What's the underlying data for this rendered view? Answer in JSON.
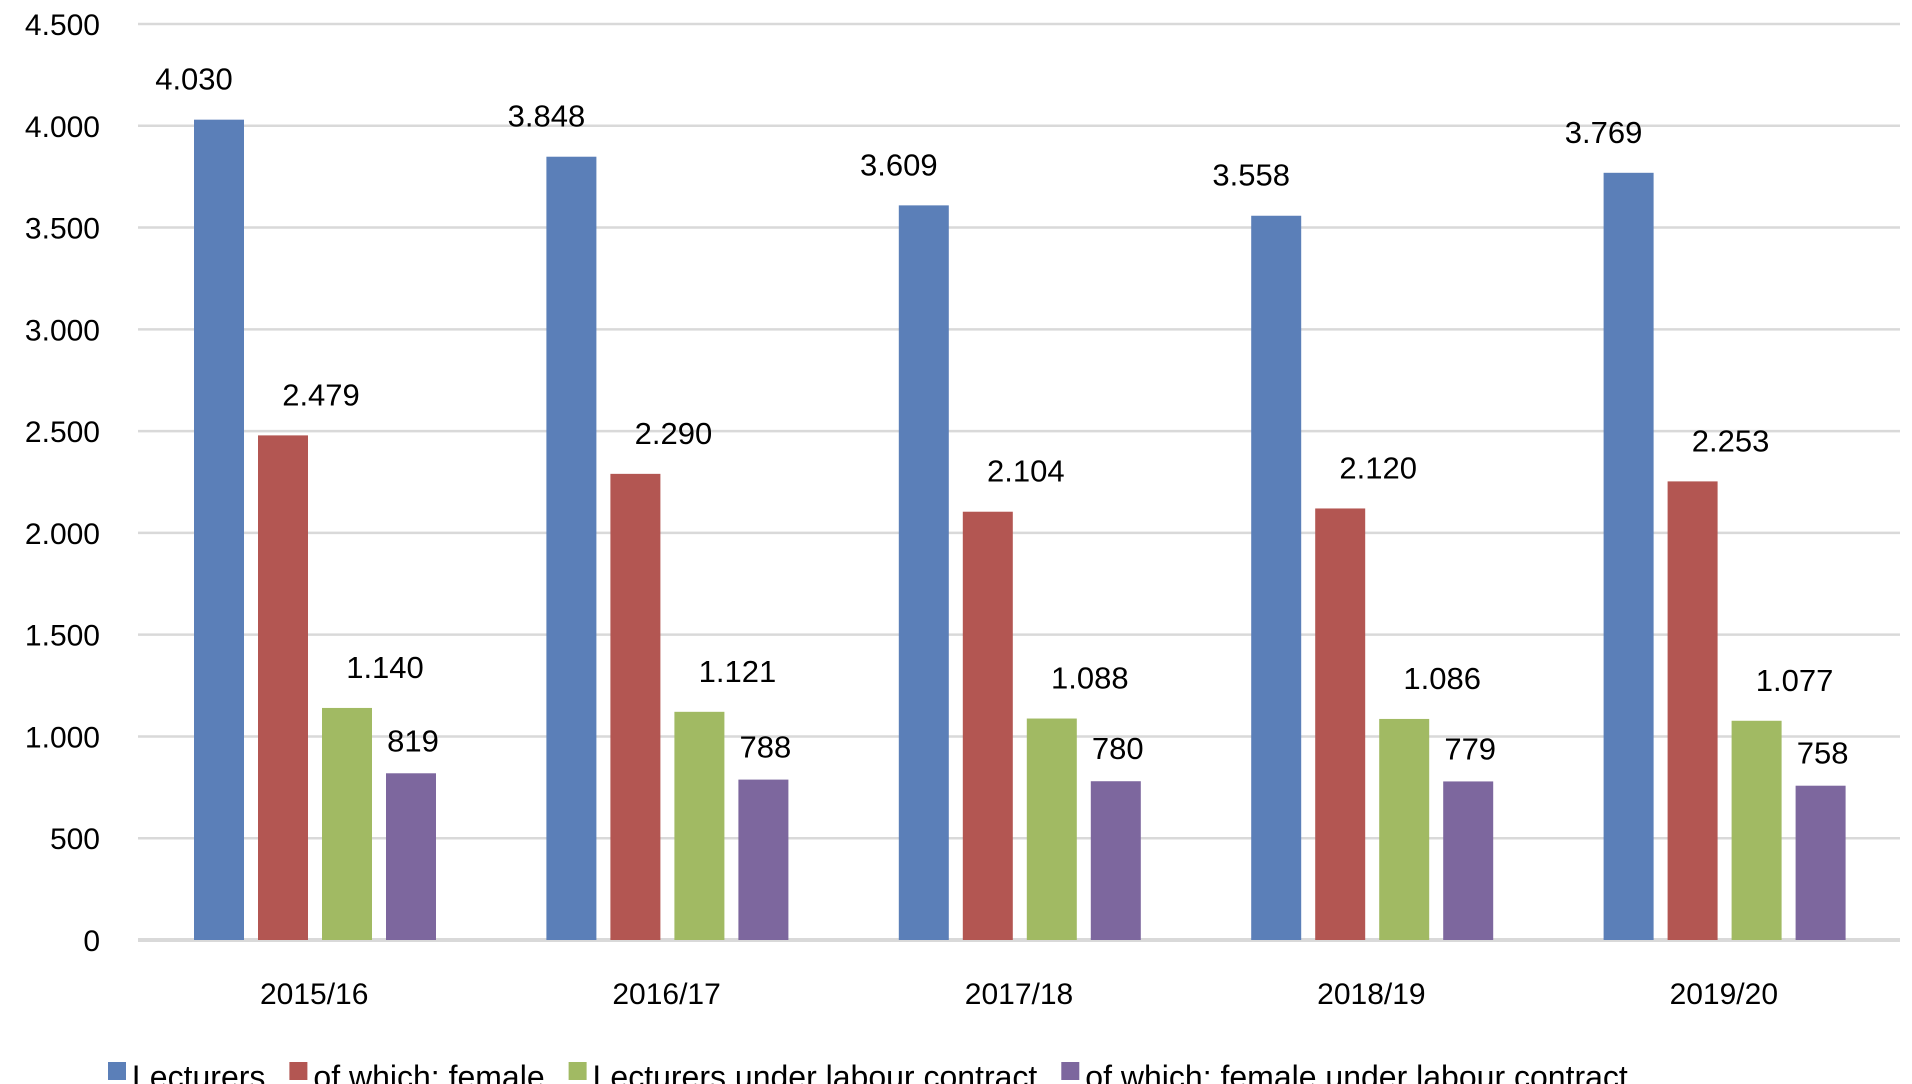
{
  "chart_data": {
    "type": "bar",
    "title": "",
    "xlabel": "",
    "ylabel": "",
    "ylim": [
      0,
      4500
    ],
    "yticks": [
      0,
      500,
      1000,
      1500,
      2000,
      2500,
      3000,
      3500,
      4000,
      4500
    ],
    "ytick_labels": [
      "0",
      "500",
      "1.000",
      "1.500",
      "2.000",
      "2.500",
      "3.000",
      "3.500",
      "4.000",
      "4.500"
    ],
    "grid": true,
    "legend_position": "bottom",
    "categories": [
      "2015/16",
      "2016/17",
      "2017/18",
      "2018/19",
      "2019/20"
    ],
    "series": [
      {
        "name": "Lecturers",
        "color": "#5B7FB8",
        "values": [
          4030,
          3848,
          3609,
          3558,
          3769
        ],
        "labels": [
          "4.030",
          "3.848",
          "3.609",
          "3.558",
          "3.769"
        ]
      },
      {
        "name": "of which: female",
        "color": "#B35652",
        "values": [
          2479,
          2290,
          2104,
          2120,
          2253
        ],
        "labels": [
          "2.479",
          "2.290",
          "2.104",
          "2.120",
          "2.253"
        ]
      },
      {
        "name": "Lecturers under labour contract",
        "color": "#A1BA63",
        "values": [
          1140,
          1121,
          1088,
          1086,
          1077
        ],
        "labels": [
          "1.140",
          "1.121",
          "1.088",
          "1.086",
          "1.077"
        ]
      },
      {
        "name": "of which: female under labour contract",
        "color": "#7D679E",
        "values": [
          819,
          788,
          780,
          779,
          758
        ],
        "labels": [
          "819",
          "788",
          "780",
          "779",
          "758"
        ]
      }
    ]
  }
}
